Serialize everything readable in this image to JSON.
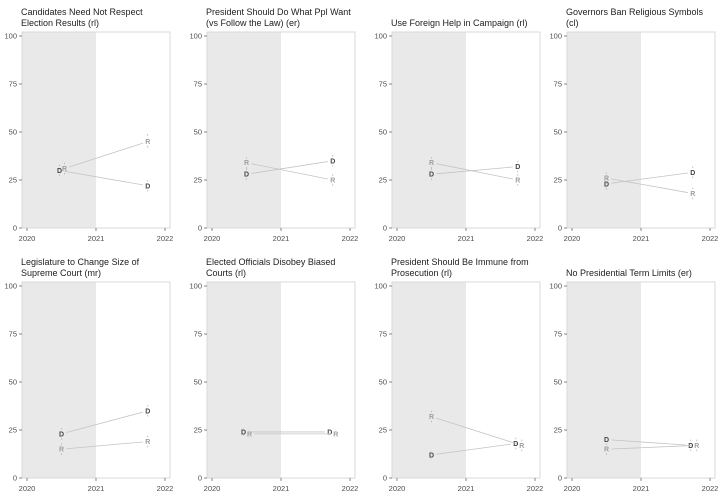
{
  "figure": {
    "description": "Faceted line chart grid, 8 panels, party means (D vs R) at two survey waves with dashed confidence intervals; gray band marks pre-2021 period",
    "colors": {
      "background": "#ffffff",
      "shaded_region": "#e9e9e9",
      "panel_border": "#d9d9d9",
      "tick_text": "#4d4d4d",
      "title_text": "#212121",
      "connector_line": "#c4c4c4",
      "error_bar": "#b4b4b4",
      "series_D": "#454545",
      "series_R": "#9e9e9e"
    }
  },
  "chart_data": {
    "type": "line",
    "layout": {
      "xlim": [
        2019.93,
        2022.07
      ],
      "ylim": [
        0,
        100
      ],
      "x_ticks": [
        2020,
        2021,
        2022
      ],
      "x_tick_labels": [
        "2020",
        "2021",
        "2022"
      ],
      "y_ticks": [
        0,
        25,
        50,
        75,
        100
      ],
      "y_tick_labels": [
        "0",
        "25",
        "50",
        "75",
        "100"
      ],
      "shaded_region_x": [
        2019.93,
        2021
      ],
      "wave_x": [
        2020.5,
        2021.75
      ],
      "grid": false,
      "legend": "none (points labeled D / R in plot)"
    },
    "panels": [
      {
        "title_lines": [
          "Candidates Need Not Respect",
          "Election Results (rl)"
        ],
        "series": [
          {
            "name": "D",
            "values": [
              30,
              22
            ],
            "ci": [
              3,
              3
            ],
            "label_dx": [
              -2,
              0
            ]
          },
          {
            "name": "R",
            "values": [
              31,
              45
            ],
            "ci": [
              3,
              4
            ],
            "label_dx": [
              3,
              0
            ]
          }
        ]
      },
      {
        "title_lines": [
          "President Should Do What Ppl Want",
          "(vs Follow the Law) (er)"
        ],
        "series": [
          {
            "name": "D",
            "values": [
              28,
              35
            ],
            "ci": [
              3,
              3
            ],
            "label_dx": [
              0,
              0
            ]
          },
          {
            "name": "R",
            "values": [
              34,
              25
            ],
            "ci": [
              3,
              3
            ],
            "label_dx": [
              0,
              0
            ]
          }
        ]
      },
      {
        "title_lines": [
          "Use Foreign Help in Campaign (rl)"
        ],
        "series": [
          {
            "name": "D",
            "values": [
              28,
              32
            ],
            "ci": [
              3,
              3
            ],
            "label_dx": [
              0,
              0
            ]
          },
          {
            "name": "R",
            "values": [
              34,
              25
            ],
            "ci": [
              3,
              3
            ],
            "label_dx": [
              0,
              0
            ]
          }
        ]
      },
      {
        "title_lines": [
          "Governors Ban Religious Symbols",
          "(cl)"
        ],
        "series": [
          {
            "name": "D",
            "values": [
              23,
              29
            ],
            "ci": [
              3,
              3
            ],
            "label_dx": [
              0,
              0
            ]
          },
          {
            "name": "R",
            "values": [
              26,
              18
            ],
            "ci": [
              3,
              3
            ],
            "label_dx": [
              0,
              0
            ]
          }
        ]
      },
      {
        "title_lines": [
          "Legislature to Change Size of",
          "Supreme Court (mr)"
        ],
        "series": [
          {
            "name": "D",
            "values": [
              23,
              35
            ],
            "ci": [
              3,
              3
            ],
            "label_dx": [
              0,
              0
            ]
          },
          {
            "name": "R",
            "values": [
              15,
              19
            ],
            "ci": [
              3,
              3
            ],
            "label_dx": [
              0,
              0
            ]
          }
        ]
      },
      {
        "title_lines": [
          "Elected Officials Disobey Biased",
          "Courts (rl)"
        ],
        "series": [
          {
            "name": "D",
            "values": [
              24,
              24
            ],
            "ci": [
              2,
              2
            ],
            "label_dx": [
              -3,
              -3
            ]
          },
          {
            "name": "R",
            "values": [
              23,
              23
            ],
            "ci": [
              2,
              2
            ],
            "label_dx": [
              3,
              3
            ]
          }
        ]
      },
      {
        "title_lines": [
          "President Should Be Immune from",
          "Prosecution (rl)"
        ],
        "series": [
          {
            "name": "D",
            "values": [
              12,
              18
            ],
            "ci": [
              2,
              3
            ],
            "label_dx": [
              0,
              -2
            ]
          },
          {
            "name": "R",
            "values": [
              32,
              17
            ],
            "ci": [
              3,
              3
            ],
            "label_dx": [
              0,
              4
            ]
          }
        ]
      },
      {
        "title_lines": [
          "No Presidential Term Limits (er)"
        ],
        "series": [
          {
            "name": "D",
            "values": [
              20,
              17
            ],
            "ci": [
              2,
              3
            ],
            "label_dx": [
              0,
              -2
            ]
          },
          {
            "name": "R",
            "values": [
              15,
              17
            ],
            "ci": [
              3,
              3
            ],
            "label_dx": [
              0,
              4
            ]
          }
        ]
      }
    ]
  }
}
